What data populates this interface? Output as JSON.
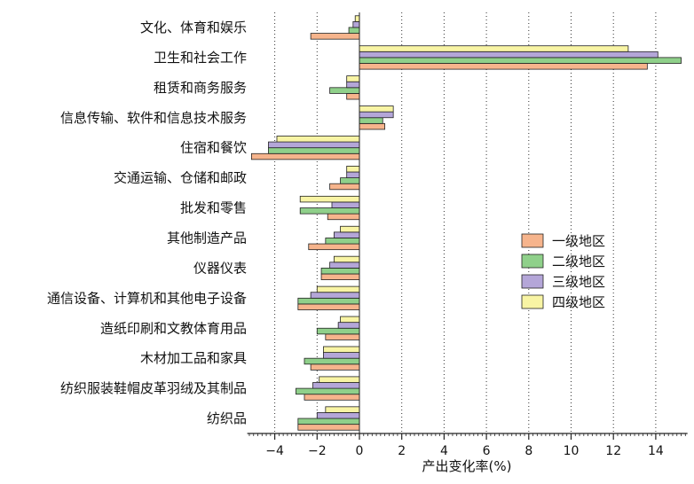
{
  "chart_data": {
    "type": "bar",
    "orientation": "horizontal",
    "categories": [
      "文化、体育和娱乐",
      "卫生和社会工作",
      "租赁和商务服务",
      "信息传输、软件和信息技术服务",
      "住宿和餐饮",
      "交通运输、仓储和邮政",
      "批发和零售",
      "其他制造产品",
      "仪器仪表",
      "通信设备、计算机和其他电子设备",
      "造纸印刷和文教体育用品",
      "木材加工品和家具",
      "纺织服装鞋帽皮革羽绒及其制品",
      "纺织品"
    ],
    "series": [
      {
        "name": "一级地区",
        "color": "#f6b48c",
        "values": [
          -2.3,
          13.6,
          -0.6,
          1.2,
          -5.1,
          -1.4,
          -1.5,
          -2.4,
          -1.8,
          -2.9,
          -1.6,
          -2.3,
          -2.6,
          -2.9
        ]
      },
      {
        "name": "二级地区",
        "color": "#8fd08a",
        "values": [
          -0.5,
          15.2,
          -1.4,
          1.1,
          -4.3,
          -0.9,
          -2.8,
          -1.6,
          -1.8,
          -2.9,
          -2.0,
          -2.6,
          -3.0,
          -2.9
        ]
      },
      {
        "name": "三级地区",
        "color": "#b4a6d8",
        "values": [
          -0.3,
          14.1,
          -0.6,
          1.6,
          -4.3,
          -0.6,
          -1.3,
          -1.2,
          -1.4,
          -2.3,
          -1.0,
          -1.7,
          -2.2,
          -2.0
        ]
      },
      {
        "name": "四级地区",
        "color": "#f8f4a4",
        "values": [
          -0.2,
          12.7,
          -0.6,
          1.6,
          -3.9,
          -0.6,
          -2.8,
          -0.9,
          -1.2,
          -2.0,
          -0.9,
          -1.7,
          -1.9,
          -1.6
        ]
      }
    ],
    "xlabel": "产出变化率(%)",
    "ylabel": "",
    "xlim": [
      -5.3,
      15.5
    ],
    "xticks": [
      "−4",
      "−2",
      "0",
      "2",
      "4",
      "6",
      "8",
      "10",
      "12",
      "14"
    ],
    "xtick_values": [
      -4,
      -2,
      0,
      2,
      4,
      6,
      8,
      10,
      12,
      14
    ],
    "grid": "vertical dotted",
    "legend_position": "right"
  }
}
